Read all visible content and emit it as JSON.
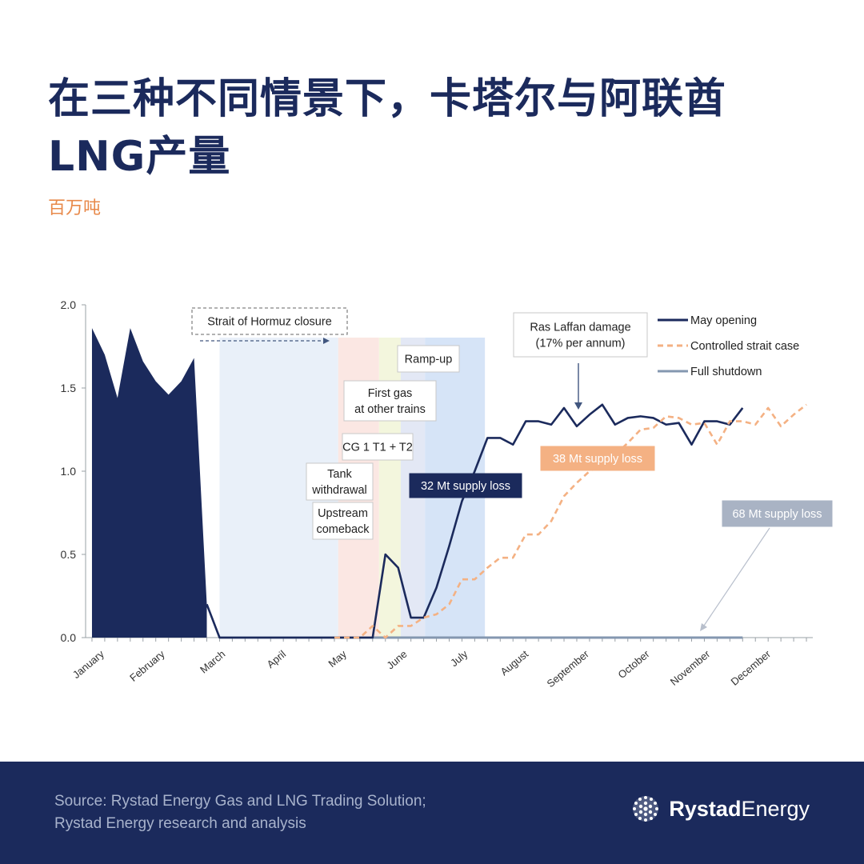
{
  "title_line1": "在三种不同情景下，卡塔尔与阿联酋",
  "title_line2": "LNG产量",
  "unit": "百万吨",
  "source_line1": "Source: Rystad Energy Gas and LNG Trading Solution;",
  "source_line2": "Rystad Energy research and analysis",
  "brand_bold": "Rystad",
  "brand_regular": "Energy",
  "colors": {
    "title": "#1b2a5c",
    "unit": "#e8894a",
    "may_opening": "#1b2a5c",
    "controlled": "#f4b183",
    "shutdown": "#8497b0",
    "footer": "#1b2a5c"
  },
  "chart_data": {
    "type": "line",
    "title": "",
    "xlabel": "",
    "ylabel": "",
    "ylim": [
      0,
      2.0
    ],
    "yticks": [
      "0.0",
      "0.5",
      "1.0",
      "1.5",
      "2.0"
    ],
    "month_labels": [
      "January",
      "February",
      "March",
      "April",
      "May",
      "June",
      "July",
      "August",
      "September",
      "October",
      "November",
      "December"
    ],
    "x_unit": "week",
    "legend_position": "top-right",
    "series": [
      {
        "name": "May opening",
        "style": "solid",
        "x": [
          1,
          2,
          3,
          4,
          5,
          6,
          7,
          8,
          9,
          10,
          11,
          12,
          13,
          14,
          15,
          16,
          17,
          18,
          19,
          20,
          21,
          22,
          23,
          24,
          25,
          26,
          27,
          28,
          29,
          30,
          31,
          32,
          33,
          34,
          35,
          36,
          37,
          38,
          39,
          40,
          41,
          42,
          43,
          44,
          45,
          46,
          47,
          48,
          49,
          50,
          51,
          52
        ],
        "values": [
          1.86,
          1.7,
          1.44,
          1.86,
          1.66,
          1.54,
          1.46,
          1.54,
          1.68,
          0.2,
          0.0,
          0.0,
          0.0,
          0.0,
          0.0,
          0.0,
          0.0,
          0.0,
          0.0,
          0.0,
          0.0,
          0.0,
          0.0,
          0.5,
          0.42,
          0.12,
          0.12,
          0.3,
          0.55,
          0.82,
          1.0,
          1.2,
          1.2,
          1.16,
          1.3,
          1.3,
          1.28,
          1.38,
          1.27,
          1.34,
          1.4,
          1.28,
          1.32,
          1.33,
          1.32,
          1.28,
          1.29,
          1.16,
          1.3,
          1.3,
          1.28,
          1.38
        ]
      },
      {
        "name": "Controlled strait case",
        "style": "dashed",
        "x": [
          20,
          21,
          22,
          23,
          24,
          25,
          26,
          27,
          28,
          29,
          30,
          31,
          32,
          33,
          34,
          35,
          36,
          37,
          38,
          39,
          40,
          41,
          42,
          43,
          44,
          45,
          46,
          47,
          48,
          49,
          50,
          51,
          52,
          53,
          54,
          55,
          56,
          57
        ],
        "values": [
          0.0,
          0.0,
          0.0,
          0.07,
          0.0,
          0.07,
          0.07,
          0.12,
          0.14,
          0.2,
          0.35,
          0.35,
          0.42,
          0.48,
          0.48,
          0.62,
          0.62,
          0.7,
          0.85,
          0.93,
          1.0,
          1.04,
          1.1,
          1.17,
          1.25,
          1.26,
          1.33,
          1.32,
          1.28,
          1.29,
          1.16,
          1.3,
          1.3,
          1.28,
          1.38,
          1.27,
          1.34,
          1.4
        ]
      },
      {
        "name": "Full shutdown",
        "style": "solid",
        "x": [
          11,
          52
        ],
        "values": [
          0.0,
          0.0
        ]
      }
    ],
    "filled_history_weeks": 10,
    "annotations": [
      {
        "id": "hormuz",
        "text": "Strait of Hormuz closure"
      },
      {
        "id": "ramp",
        "text": "Ramp-up"
      },
      {
        "id": "firstgas_l1",
        "text": "First gas"
      },
      {
        "id": "firstgas_l2",
        "text": "at other trains"
      },
      {
        "id": "cg",
        "text": "CG 1 T1 + T2"
      },
      {
        "id": "tank_l1",
        "text": "Tank"
      },
      {
        "id": "tank_l2",
        "text": "withdrawal"
      },
      {
        "id": "upstream_l1",
        "text": "Upstream"
      },
      {
        "id": "upstream_l2",
        "text": "comeback"
      },
      {
        "id": "raslaffan_l1",
        "text": "Ras Laffan damage"
      },
      {
        "id": "raslaffan_l2",
        "text": "(17% per annum)"
      },
      {
        "id": "loss32",
        "text": "32 Mt supply loss"
      },
      {
        "id": "loss38",
        "text": "38 Mt supply loss"
      },
      {
        "id": "loss68",
        "text": "68 Mt supply loss"
      }
    ]
  }
}
